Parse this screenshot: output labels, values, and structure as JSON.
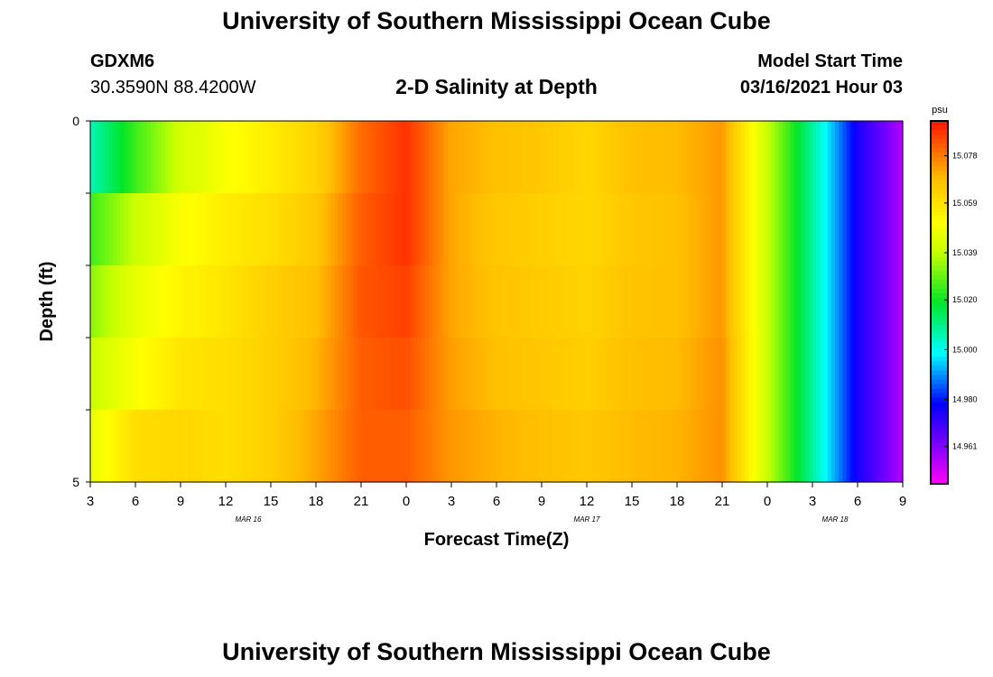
{
  "header": {
    "title": "University of Southern Mississippi Ocean Cube",
    "station_id": "GDXM6",
    "location": "30.3590N 88.4200W",
    "subtitle": "2-D Salinity at Depth",
    "model_start_label": "Model Start Time",
    "model_start_value": "03/16/2021 Hour 03"
  },
  "footer": {
    "title": "University of Southern Mississippi Ocean Cube"
  },
  "chart_data": {
    "type": "heatmap",
    "title": "2-D Salinity at Depth",
    "xlabel": "Forecast Time(Z)",
    "ylabel": "Depth (ft)",
    "x_tick_labels": [
      "3",
      "6",
      "9",
      "12",
      "15",
      "18",
      "21",
      "0",
      "3",
      "6",
      "9",
      "12",
      "15",
      "18",
      "21",
      "0",
      "3",
      "6",
      "9"
    ],
    "date_labels": [
      {
        "label": "MAR 16",
        "tick_index": 3.5
      },
      {
        "label": "MAR 17",
        "tick_index": 11
      },
      {
        "label": "MAR 18",
        "tick_index": 16.5
      }
    ],
    "y_tick_labels": [
      "0",
      "5"
    ],
    "ylim": [
      0,
      5
    ],
    "depth_rows": [
      0,
      1,
      2,
      3,
      4
    ],
    "forecast_hours": [
      0,
      3,
      6,
      9,
      12,
      15,
      18,
      21,
      24,
      27,
      30,
      33,
      36,
      39,
      42,
      45,
      48,
      51,
      54
    ],
    "values": [
      [
        15.005,
        15.025,
        15.042,
        15.05,
        15.056,
        15.063,
        15.08,
        15.088,
        15.072,
        15.068,
        15.066,
        15.062,
        15.068,
        15.069,
        15.074,
        15.04,
        15.008,
        14.975,
        14.955
      ],
      [
        15.025,
        15.04,
        15.05,
        15.056,
        15.06,
        15.066,
        15.082,
        15.088,
        15.072,
        15.066,
        15.064,
        15.062,
        15.066,
        15.068,
        15.074,
        15.04,
        15.008,
        14.975,
        14.955
      ],
      [
        15.033,
        15.046,
        15.054,
        15.058,
        15.064,
        15.068,
        15.083,
        15.086,
        15.072,
        15.067,
        15.065,
        15.063,
        15.067,
        15.068,
        15.074,
        15.04,
        15.008,
        14.975,
        14.955
      ],
      [
        15.04,
        15.05,
        15.058,
        15.06,
        15.064,
        15.07,
        15.082,
        15.084,
        15.073,
        15.068,
        15.066,
        15.064,
        15.068,
        15.069,
        15.075,
        15.04,
        15.008,
        14.975,
        14.955
      ],
      [
        15.046,
        15.06,
        15.062,
        15.06,
        15.064,
        15.072,
        15.082,
        15.082,
        15.074,
        15.07,
        15.068,
        15.066,
        15.069,
        15.07,
        15.075,
        15.04,
        15.008,
        14.975,
        14.955
      ]
    ],
    "colorbar": {
      "unit": "psu",
      "min": 14.946,
      "max": 15.092,
      "tick_labels": [
        "15.078",
        "15.059",
        "15.039",
        "15.020",
        "15.000",
        "14.980",
        "14.961"
      ]
    }
  }
}
